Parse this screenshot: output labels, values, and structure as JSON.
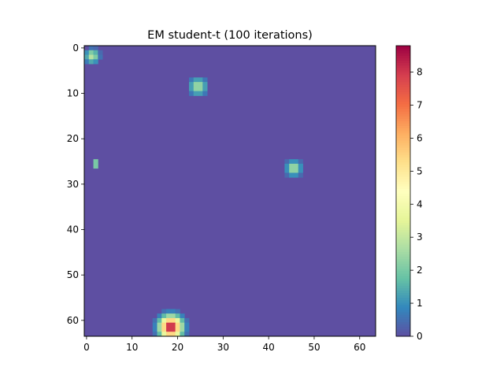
{
  "chart_data": {
    "type": "heatmap",
    "title": "EM student-t (100 iterations)",
    "xlabel": "",
    "ylabel": "",
    "grid_size": [
      64,
      64
    ],
    "xlim": [
      -0.5,
      63.5
    ],
    "ylim": [
      63.5,
      -0.5
    ],
    "x_ticks": [
      0,
      10,
      20,
      30,
      40,
      50,
      60
    ],
    "y_ticks": [
      0,
      10,
      20,
      30,
      40,
      50,
      60
    ],
    "colormap": "Spectral_r",
    "colorbar": {
      "min": 0,
      "max": 8.8,
      "ticks": [
        0,
        1,
        2,
        3,
        4,
        5,
        6,
        7,
        8
      ]
    },
    "background_value": 0,
    "blobs": [
      {
        "center_x": 1.2,
        "center_y": 1.8,
        "peak": 2.9,
        "sigma": 1.0
      },
      {
        "center_x": 24.5,
        "center_y": 8.5,
        "peak": 2.7,
        "sigma": 1.25
      },
      {
        "center_x": 45.5,
        "center_y": 26.5,
        "peak": 2.8,
        "sigma": 1.1
      },
      {
        "center_x": 18.5,
        "center_y": 61.5,
        "peak": 8.8,
        "sigma": 1.6
      }
    ],
    "points": [
      {
        "x": 2,
        "y": 25,
        "value": 2.0
      },
      {
        "x": 2,
        "y": 26,
        "value": 2.0
      }
    ]
  },
  "colors": {
    "background_cell": "#5e4fa2",
    "axes_edge": "#000000"
  }
}
